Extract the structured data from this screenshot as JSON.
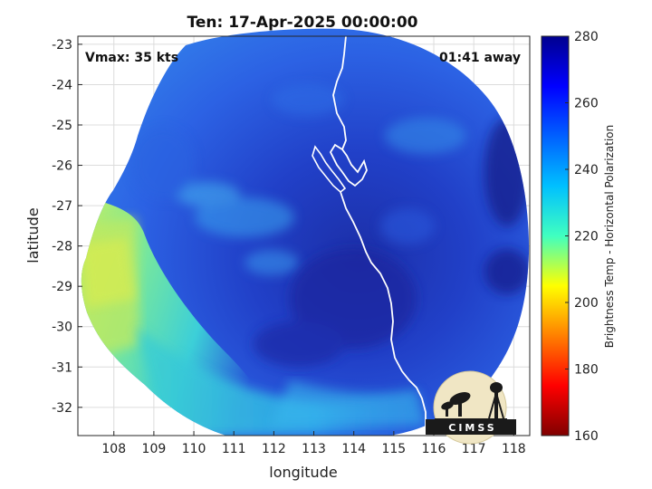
{
  "title": "Ten: 17-Apr-2025 00:00:00",
  "vmax_label": "Vmax: 35 kts",
  "time_away_label": "01:41 away",
  "xlabel": "longitude",
  "ylabel": "latitude",
  "colorbar": {
    "label": "Brightness Temp - Horizontal Polarization",
    "ticks": [
      "280",
      "260",
      "240",
      "220",
      "200",
      "180",
      "160"
    ],
    "range": [
      160,
      280
    ]
  },
  "logo": {
    "text": "CIMSS"
  },
  "colors": {
    "background": "#ffffff",
    "coastline": "#ffffff",
    "deep_blue": "#1a2ea8",
    "mid_blue": "#2a5ae0",
    "light_blue": "#2fa0f0",
    "cyan": "#39d4d0",
    "yellow_green": "#b4ee6a"
  },
  "chart_data": {
    "type": "heatmap",
    "title": "Ten: 17-Apr-2025 00:00:00",
    "xlabel": "longitude",
    "ylabel": "latitude",
    "xlim": [
      107.1,
      118.4
    ],
    "ylim": [
      -32.7,
      -22.8
    ],
    "xticks": [
      "108",
      "109",
      "110",
      "111",
      "112",
      "113",
      "114",
      "115",
      "116",
      "117",
      "118"
    ],
    "yticks": [
      "-23",
      "-24",
      "-25",
      "-26",
      "-27",
      "-28",
      "-29",
      "-30",
      "-31",
      "-32"
    ],
    "grid": true,
    "colorbar_range": [
      160,
      280
    ],
    "colormap": "jet",
    "annotations": [
      "Vmax: 35 kts",
      "01:41 away"
    ]
  }
}
